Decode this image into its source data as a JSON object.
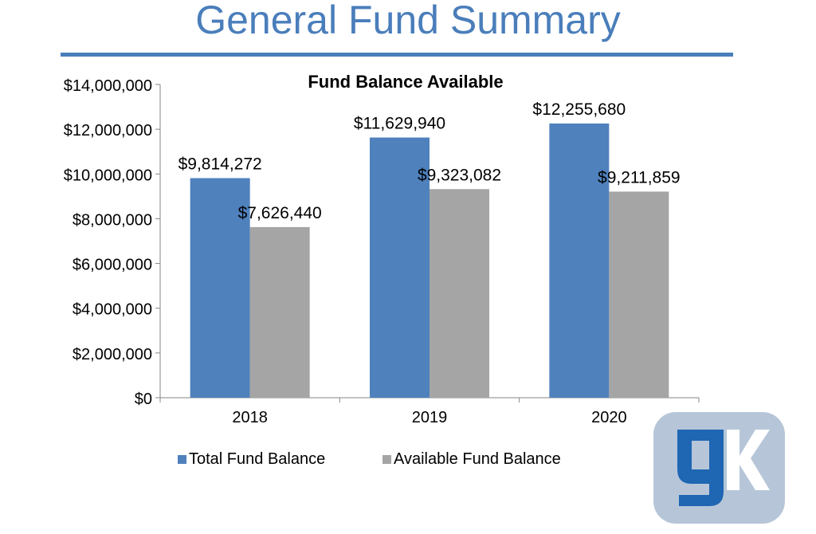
{
  "page": {
    "title": "General Fund Summary"
  },
  "logo": {
    "text": "gK",
    "colors": {
      "background": "#b6c6d8",
      "g": "#1f66b3",
      "k": "#ffffff"
    }
  },
  "colors": {
    "title": "#4a7ebb",
    "total_bar": "#4f81bd",
    "available_bar": "#a5a5a5"
  },
  "chart_data": {
    "type": "bar",
    "title": "Fund Balance Available",
    "xlabel": "",
    "ylabel": "",
    "categories": [
      "2018",
      "2019",
      "2020"
    ],
    "series": [
      {
        "name": "Total Fund Balance",
        "values": [
          9814272,
          11629940,
          12255680
        ],
        "labels": [
          "$9,814,272",
          "$11,629,940",
          "$12,255,680"
        ]
      },
      {
        "name": "Available Fund Balance",
        "values": [
          7626440,
          9323082,
          9211859
        ],
        "labels": [
          "$7,626,440",
          "$9,323,082",
          "$9,211,859"
        ]
      }
    ],
    "ylim": [
      0,
      14000000
    ],
    "yticks": [
      0,
      2000000,
      4000000,
      6000000,
      8000000,
      10000000,
      12000000,
      14000000
    ],
    "ytick_labels": [
      "$0",
      "$2,000,000",
      "$4,000,000",
      "$6,000,000",
      "$8,000,000",
      "$10,000,000",
      "$12,000,000",
      "$14,000,000"
    ],
    "grid": false,
    "legend_position": "bottom"
  }
}
